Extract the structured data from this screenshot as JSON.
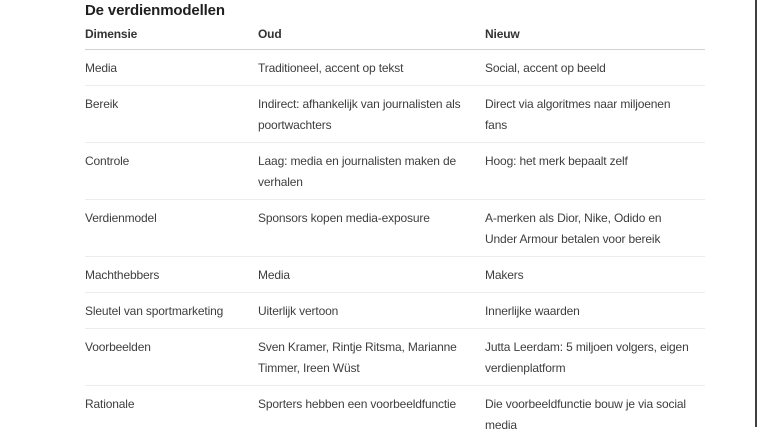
{
  "page": {
    "title": "De verdienmodellen"
  },
  "table": {
    "columns": [
      "Dimensie",
      "Oud",
      "Nieuw"
    ],
    "rows": [
      {
        "dimensie": "Media",
        "oud": "Traditioneel, accent op tekst",
        "nieuw": "Social, accent op beeld"
      },
      {
        "dimensie": "Bereik",
        "oud": "Indirect: afhankelijk van journalisten als poortwachters",
        "nieuw": "Direct via algoritmes naar miljoenen fans"
      },
      {
        "dimensie": "Controle",
        "oud": "Laag: media en journalisten maken de verhalen",
        "nieuw": "Hoog: het merk bepaalt zelf"
      },
      {
        "dimensie": "Verdienmodel",
        "oud": "Sponsors kopen media-exposure",
        "nieuw": "A-merken als Dior, Nike, Odido en Under Armour betalen voor bereik"
      },
      {
        "dimensie": "Machthebbers",
        "oud": "Media",
        "nieuw": "Makers"
      },
      {
        "dimensie": "Sleutel van sportmarketing",
        "oud": "Uiterlijk vertoon",
        "nieuw": "Innerlijke waarden"
      },
      {
        "dimensie": "Voorbeelden",
        "oud": "Sven Kramer, Rintje Ritsma, Marianne Timmer, Ireen Wüst",
        "nieuw": "Jutta Leerdam: 5 miljoen volgers, eigen verdienplatform"
      },
      {
        "dimensie": "Rationale",
        "oud": "Sporters hebben een voorbeeldfunctie",
        "nieuw": "Die voorbeeldfunctie bouw je via social media"
      }
    ]
  },
  "colors": {
    "title_text": "#1f1f1f",
    "header_text": "#333333",
    "body_text": "#3e3e3e",
    "header_rule": "#d2d2d2",
    "row_rule": "#ececec",
    "window_edge": "#3f3f3f",
    "background": "#ffffff"
  }
}
